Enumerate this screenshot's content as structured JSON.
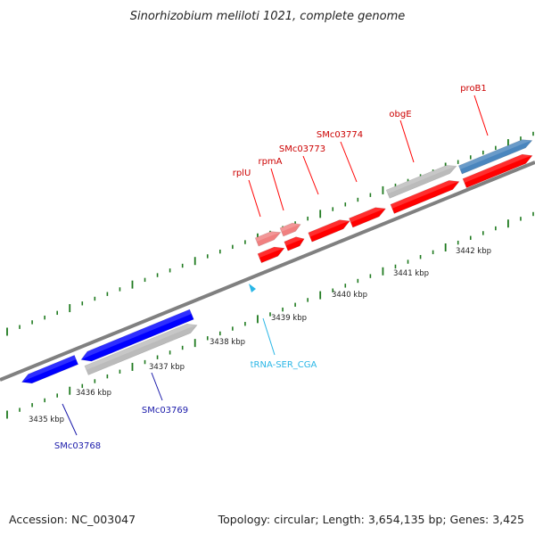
{
  "title": "Sinorhizobium meliloti 1021, complete genome",
  "accession": "Accession: NC_003047",
  "topology": "Topology: circular; Length: 3,654,135 bp; Genes: 3,425",
  "colors": {
    "forward": "#ff0000",
    "forward_light": "#f08080",
    "reverse": "#0000ff",
    "pseudo": "#bbbbbb",
    "highlight": "#4a86be",
    "trna": "#29b6e6",
    "tick": "#1f7a1f",
    "backbone": "#808080"
  },
  "scale_labels": [
    "3435 kbp",
    "3436 kbp",
    "3437 kbp",
    "3438 kbp",
    "3439 kbp",
    "3440 kbp",
    "3441 kbp",
    "3442 kbp"
  ],
  "gene_labels": [
    {
      "text": "rplU",
      "strand": "forward"
    },
    {
      "text": "rpmA",
      "strand": "forward"
    },
    {
      "text": "SMc03773",
      "strand": "forward"
    },
    {
      "text": "SMc03774",
      "strand": "forward"
    },
    {
      "text": "obgE",
      "strand": "forward"
    },
    {
      "text": "proB1",
      "strand": "forward"
    },
    {
      "text": "SMc03769",
      "strand": "reverse"
    },
    {
      "text": "SMc03768",
      "strand": "reverse"
    },
    {
      "text": "tRNA-SER_CGA",
      "strand": "rna"
    }
  ]
}
